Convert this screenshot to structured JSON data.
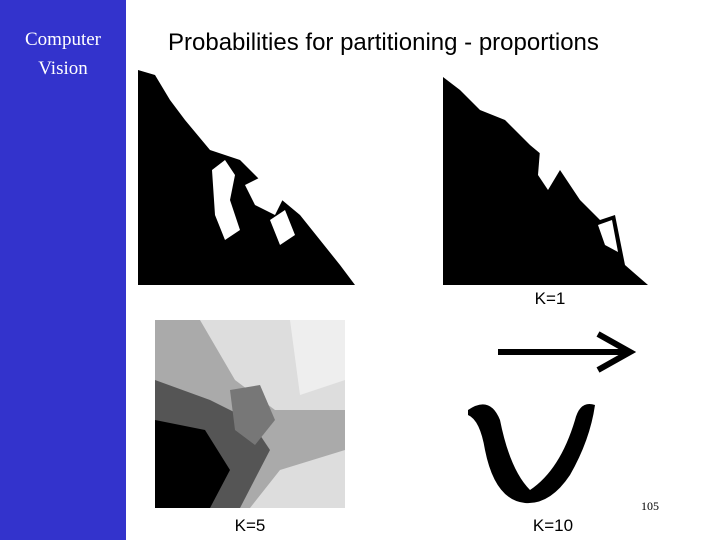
{
  "sidebar": {
    "lines": [
      "Computer",
      "Vision"
    ]
  },
  "title": "Probabilities for partitioning - proportions",
  "labels": {
    "k1": "K=1",
    "k5": "K=5",
    "k10": "K=10"
  },
  "page_number": "105"
}
